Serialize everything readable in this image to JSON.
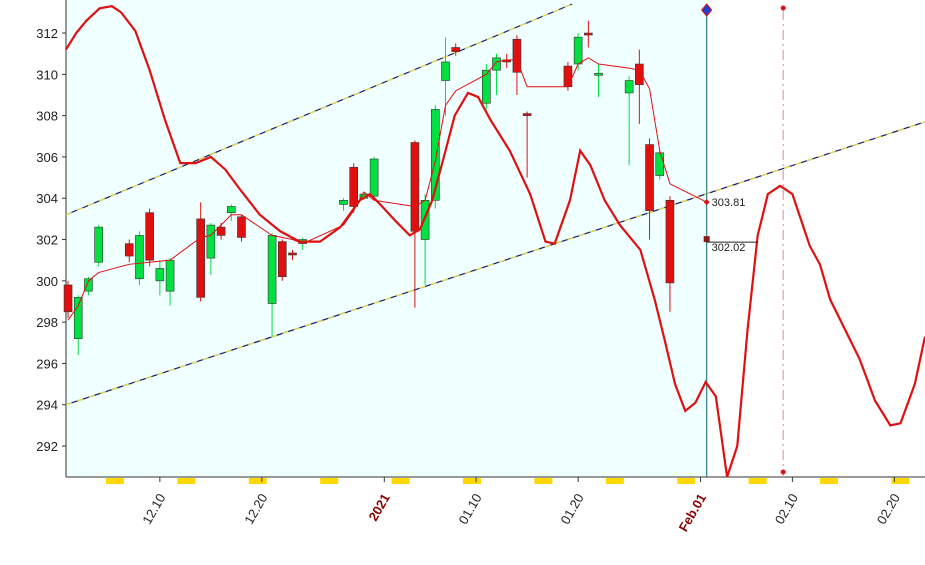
{
  "chart_data": {
    "type": "candlestick",
    "xlim": [
      -0.2,
      84
    ],
    "ylim": [
      290.5,
      313.6
    ],
    "yticks": [
      292,
      294,
      296,
      298,
      300,
      302,
      304,
      306,
      308,
      310,
      312
    ],
    "xticks": [
      {
        "value": 9,
        "label": "12.10"
      },
      {
        "value": 19,
        "label": "12.20"
      },
      {
        "value": 31,
        "label": "2021",
        "color": "#8b0000"
      },
      {
        "value": 40,
        "label": "01.10"
      },
      {
        "value": 50,
        "label": "01.20"
      },
      {
        "value": 62,
        "label": "Feb.01",
        "color": "#8b0000"
      },
      {
        "value": 71,
        "label": "02.10"
      },
      {
        "value": 81,
        "label": "02.20"
      }
    ],
    "up_color": "#00e040",
    "down_color": "#e01010",
    "background": "#f0ffff",
    "x": [
      0,
      1,
      2,
      3,
      6,
      7,
      8,
      9,
      10,
      13,
      14,
      15,
      16,
      17,
      20,
      21,
      22,
      23,
      27,
      28,
      29,
      30,
      34,
      35,
      36,
      37,
      38,
      41,
      42,
      43,
      44,
      45,
      49,
      50,
      51,
      52,
      55,
      56,
      57,
      58,
      59
    ],
    "open": [
      299.8,
      297.2,
      299.5,
      300.9,
      301.8,
      300.1,
      303.3,
      300.0,
      299.5,
      303.0,
      301.1,
      302.6,
      303.3,
      303.1,
      298.9,
      301.9,
      301.35,
      301.8,
      303.7,
      305.5,
      304.0,
      304.1,
      306.7,
      302.0,
      303.9,
      309.7,
      311.3,
      308.6,
      310.2,
      310.7,
      311.7,
      308.1,
      310.4,
      310.5,
      312.0,
      310.0,
      309.1,
      310.5,
      306.6,
      305.1,
      303.9
    ],
    "high": [
      300.0,
      299.3,
      300.2,
      302.7,
      302.0,
      302.4,
      303.5,
      301.0,
      301.1,
      303.8,
      302.8,
      302.8,
      303.7,
      303.2,
      302.3,
      302.0,
      301.5,
      302.1,
      304.0,
      305.7,
      304.3,
      306.0,
      306.8,
      304.2,
      308.5,
      311.8,
      311.5,
      310.5,
      311.0,
      311.0,
      311.9,
      308.2,
      310.6,
      312.0,
      312.6,
      310.5,
      309.9,
      311.2,
      306.9,
      306.3,
      304.1
    ],
    "low": [
      298.2,
      296.4,
      299.3,
      300.7,
      300.9,
      299.8,
      300.7,
      299.3,
      298.8,
      299.0,
      300.3,
      302.0,
      302.9,
      301.9,
      297.3,
      300.0,
      301.0,
      301.5,
      303.4,
      303.3,
      303.9,
      303.9,
      298.7,
      299.8,
      303.5,
      308.0,
      310.9,
      308.3,
      309.0,
      310.3,
      309.0,
      305.0,
      309.2,
      310.2,
      311.3,
      308.9,
      305.6,
      307.6,
      302.0,
      304.9,
      298.5
    ],
    "close": [
      298.5,
      299.2,
      300.1,
      302.6,
      301.2,
      302.2,
      301.0,
      300.6,
      301.0,
      299.2,
      302.7,
      302.2,
      303.6,
      302.1,
      302.2,
      300.2,
      301.25,
      302.0,
      303.9,
      303.6,
      304.2,
      305.9,
      302.4,
      303.9,
      308.3,
      310.6,
      311.1,
      310.2,
      310.8,
      310.6,
      310.1,
      308.0,
      309.4,
      311.8,
      311.95,
      310.05,
      309.7,
      309.5,
      303.4,
      306.2,
      299.9
    ],
    "series": [
      {
        "color": "#e01010",
        "width": 1,
        "x": [
          0,
          1,
          2,
          3,
          6,
          8,
          10,
          13,
          14,
          16,
          17,
          20,
          22,
          23,
          27,
          28,
          29,
          30,
          34,
          35,
          36,
          37,
          38,
          41,
          42,
          43,
          44,
          45,
          49,
          50,
          51,
          52,
          55,
          56,
          57,
          58,
          59,
          62.6
        ],
        "values": [
          298.1,
          298.8,
          300.0,
          300.4,
          300.8,
          300.9,
          301.0,
          302.1,
          302.2,
          303.2,
          303.2,
          302.2,
          302.0,
          301.8,
          302.7,
          303.4,
          304.3,
          303.9,
          303.6,
          303.9,
          305.8,
          308.5,
          309.2,
          310.0,
          310.6,
          310.7,
          310.7,
          309.4,
          309.4,
          310.5,
          310.8,
          310.5,
          310.3,
          310.2,
          309.3,
          306.3,
          304.7,
          303.81
        ]
      },
      {
        "color": "#e01010",
        "width": 2.2,
        "x": [
          -0.2,
          0.8,
          1.8,
          3.1,
          4.3,
          5.2,
          6.6,
          8.0,
          9.5,
          11.0,
          12.5,
          14.0,
          15.4,
          16.9,
          18.8,
          20.8,
          22.7,
          24.7,
          26.7,
          28.6,
          29.6,
          30.6,
          32.1,
          33.5,
          34.5,
          35.7,
          37.0,
          37.9,
          39.2,
          40.2,
          41.4,
          43.3,
          45.3,
          46.8,
          47.7,
          49.2,
          50.2,
          51.2,
          52.6,
          54.1,
          56.1,
          57.5,
          58.5,
          59.5,
          60.5,
          61.5,
          62.5,
          63.5,
          64.6,
          65.6,
          66.6,
          67.6,
          68.6,
          69.8,
          71.0,
          72.7,
          73.7,
          74.7,
          76.2,
          77.6,
          79.1,
          80.6,
          81.6,
          83.0,
          84.0
        ],
        "values": [
          311.2,
          312.0,
          312.6,
          313.2,
          313.3,
          313.0,
          312.1,
          310.2,
          307.8,
          305.7,
          305.7,
          306.0,
          305.4,
          304.4,
          303.2,
          302.4,
          301.9,
          301.9,
          302.6,
          303.9,
          304.2,
          303.7,
          302.9,
          302.2,
          302.5,
          303.9,
          306.3,
          308.0,
          309.1,
          308.9,
          307.8,
          306.3,
          304.2,
          301.9,
          301.8,
          303.9,
          306.3,
          305.6,
          303.9,
          302.7,
          301.5,
          299.1,
          297.1,
          295.0,
          293.7,
          294.1,
          295.1,
          294.4,
          290.5,
          292.0,
          297.6,
          302.2,
          304.2,
          304.6,
          304.2,
          301.7,
          300.8,
          299.1,
          297.6,
          296.2,
          294.2,
          293.0,
          293.1,
          295.0,
          297.3
        ]
      }
    ],
    "trendlines": [
      {
        "x": [
          -0.2,
          49.4
        ],
        "values": [
          303.2,
          313.4
        ]
      },
      {
        "x": [
          -0.2,
          84
        ],
        "values": [
          294.0,
          307.7
        ]
      }
    ],
    "verticals": [
      {
        "x": 62.6,
        "color": "#2a8080",
        "dashed": false
      },
      {
        "x": 70.1,
        "color": "#e0a0a0",
        "dashed": true
      }
    ],
    "labels": [
      {
        "x": 62.6,
        "value": 303.81,
        "color": "#e01010"
      },
      {
        "x": 62.6,
        "value": 302.02,
        "color": "#8b1a1a"
      }
    ]
  }
}
